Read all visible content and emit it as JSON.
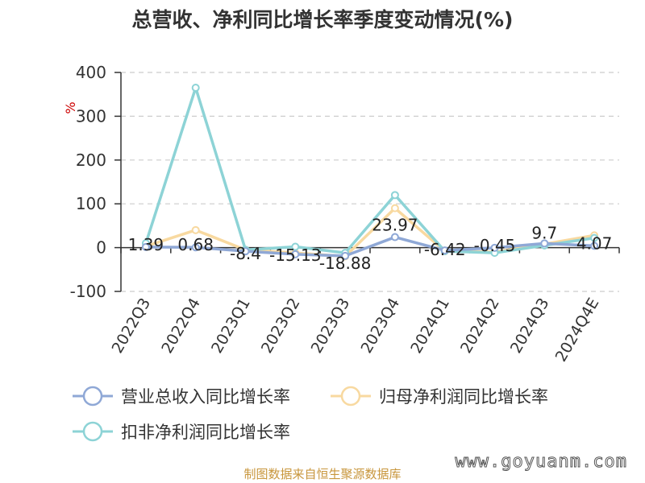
{
  "title": "总营收、净利同比增长率季度变动情况(%)",
  "source": "制图数据来自恒生聚源数据库",
  "watermark": "www.goyuanm.com",
  "colors": {
    "revenue": "#8fa8d6",
    "net_profit": "#f8d9a0",
    "deducted_profit": "#8dd3d6",
    "unit": "#cc0000",
    "source": "#c8963c"
  },
  "chart_data": {
    "type": "line",
    "title": "总营收、净利同比增长率季度变动情况(%)",
    "ylabel": "%",
    "ylim": [
      -100,
      400
    ],
    "yticks": [
      400,
      300,
      200,
      100,
      0,
      -100
    ],
    "grid": true,
    "legend_position": "bottom",
    "categories": [
      "2022Q3",
      "2022Q4",
      "2023Q1",
      "2023Q2",
      "2023Q3",
      "2023Q4",
      "2024Q1",
      "2024Q2",
      "2024Q3",
      "2024Q4E"
    ],
    "series": [
      {
        "name": "营业总收入同比增长率",
        "color": "#8fa8d6",
        "values": [
          1.39,
          0.68,
          -8.4,
          -15.13,
          -18.88,
          23.97,
          -6.42,
          -0.45,
          9.7,
          4.07
        ]
      },
      {
        "name": "归母净利润同比增长率",
        "color": "#f8d9a0",
        "values": [
          3,
          40,
          -5,
          -12,
          -20,
          90,
          -8,
          -10,
          8,
          28
        ]
      },
      {
        "name": "扣非净利润同比增长率",
        "color": "#8dd3d6",
        "values": [
          10,
          365,
          -5,
          2,
          -12,
          120,
          -8,
          -12,
          5,
          22
        ]
      }
    ],
    "data_labels": [
      {
        "series": 0,
        "index": 0,
        "text": "1.39"
      },
      {
        "series": 0,
        "index": 1,
        "text": "0.68"
      },
      {
        "series": 0,
        "index": 2,
        "text": "-8.4"
      },
      {
        "series": 0,
        "index": 3,
        "text": "-15.13"
      },
      {
        "series": 0,
        "index": 4,
        "text": "-18.88"
      },
      {
        "series": 0,
        "index": 5,
        "text": "23.97"
      },
      {
        "series": 0,
        "index": 6,
        "text": "-6.42"
      },
      {
        "series": 0,
        "index": 7,
        "text": "-0.45"
      },
      {
        "series": 0,
        "index": 8,
        "text": "9.7"
      },
      {
        "series": 0,
        "index": 9,
        "text": "4.07"
      }
    ]
  }
}
